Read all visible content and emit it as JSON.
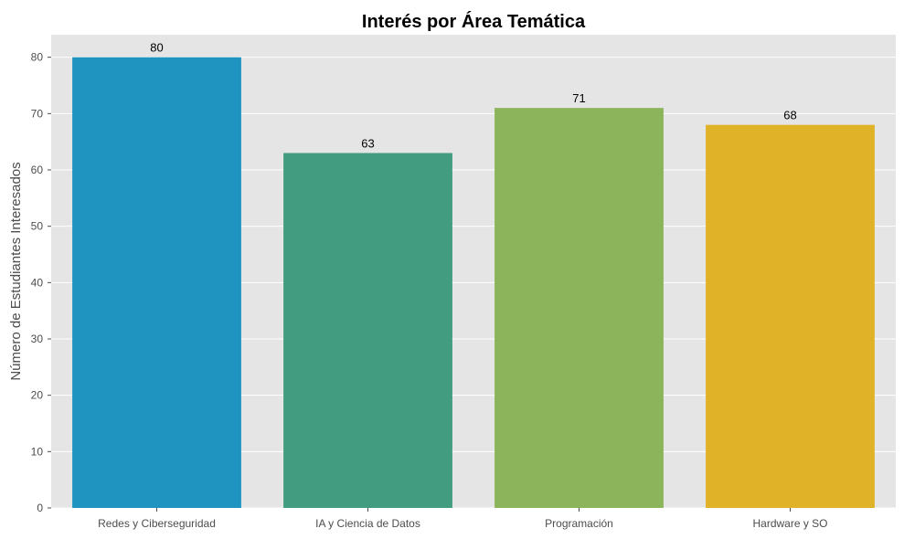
{
  "chart_data": {
    "type": "bar",
    "title": "Interés por Área Temática",
    "xlabel": "",
    "ylabel": "Número de Estudiantes Interesados",
    "categories": [
      "Redes y Ciberseguridad",
      "IA y Ciencia de Datos",
      "Programación",
      "Hardware y SO"
    ],
    "values": [
      80,
      63,
      71,
      68
    ],
    "data_labels": [
      "80",
      "63",
      "71",
      "68"
    ],
    "colors": [
      "#1f94c1",
      "#419c80",
      "#8bb45b",
      "#e0b228"
    ],
    "ylim": [
      0,
      84
    ],
    "yticks": [
      0,
      10,
      20,
      30,
      40,
      50,
      60,
      70,
      80
    ],
    "grid": true,
    "background": "#e5e5e5",
    "grid_color": "#ffffff"
  }
}
